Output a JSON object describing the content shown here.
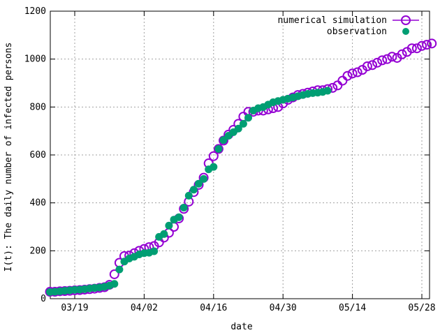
{
  "chart_data": {
    "type": "scatter",
    "xlabel": "date",
    "ylabel": "I(t): The daily number of infected persons",
    "xlim_days": [
      0,
      77
    ],
    "ylim": [
      0,
      1200
    ],
    "x_ticks": [
      {
        "day": 5,
        "label": "03/19"
      },
      {
        "day": 19,
        "label": "04/02"
      },
      {
        "day": 33,
        "label": "04/16"
      },
      {
        "day": 47,
        "label": "04/30"
      },
      {
        "day": 61,
        "label": "05/14"
      },
      {
        "day": 75,
        "label": "05/28"
      }
    ],
    "y_ticks": [
      0,
      200,
      400,
      600,
      800,
      1000,
      1200
    ],
    "grid": true,
    "legend_position": "top-right",
    "series": [
      {
        "name": "numerical simulation",
        "marker": "open-circle",
        "color": "#9400d3",
        "x_days": [
          0,
          1,
          2,
          3,
          4,
          5,
          6,
          7,
          8,
          9,
          10,
          11,
          12,
          13,
          14,
          15,
          16,
          17,
          18,
          19,
          20,
          21,
          22,
          23,
          24,
          25,
          26,
          27,
          28,
          29,
          30,
          31,
          32,
          33,
          34,
          35,
          36,
          37,
          38,
          39,
          40,
          41,
          42,
          43,
          44,
          45,
          46,
          47,
          48,
          49,
          50,
          51,
          52,
          53,
          54,
          55,
          56,
          57,
          58,
          59,
          60,
          61,
          62,
          63,
          64,
          65,
          66,
          67,
          68,
          69,
          70,
          71,
          72,
          73,
          74,
          75,
          76,
          77
        ],
        "values": [
          29,
          29,
          31,
          32,
          33,
          35,
          36,
          38,
          40,
          42,
          45,
          48,
          58,
          102,
          150,
          178,
          180,
          190,
          200,
          208,
          215,
          220,
          235,
          255,
          275,
          300,
          335,
          375,
          405,
          445,
          475,
          505,
          565,
          595,
          625,
          660,
          685,
          705,
          730,
          760,
          780,
          780,
          785,
          785,
          790,
          795,
          800,
          815,
          830,
          840,
          850,
          855,
          860,
          865,
          870,
          870,
          875,
          880,
          890,
          910,
          930,
          940,
          945,
          955,
          970,
          975,
          985,
          995,
          1000,
          1010,
          1005,
          1020,
          1030,
          1045,
          1045,
          1055,
          1060,
          1065
        ]
      },
      {
        "name": "observation",
        "marker": "filled-circle",
        "color": "#009e73",
        "x_days": [
          0,
          1,
          2,
          3,
          4,
          5,
          6,
          7,
          8,
          9,
          10,
          11,
          12,
          13,
          14,
          15,
          16,
          17,
          18,
          19,
          20,
          21,
          22,
          23,
          24,
          25,
          26,
          27,
          28,
          29,
          30,
          31,
          32,
          33,
          34,
          35,
          36,
          37,
          38,
          39,
          40,
          41,
          42,
          43,
          44,
          45,
          46,
          47,
          48,
          49,
          50,
          51,
          52,
          53,
          54,
          55,
          56
        ],
        "values": [
          28,
          29,
          31,
          33,
          35,
          37,
          38,
          40,
          43,
          45,
          47,
          50,
          55,
          62,
          122,
          155,
          168,
          175,
          185,
          190,
          192,
          198,
          258,
          270,
          305,
          330,
          340,
          380,
          430,
          455,
          480,
          500,
          540,
          550,
          625,
          662,
          680,
          695,
          710,
          730,
          755,
          785,
          795,
          800,
          810,
          820,
          825,
          830,
          835,
          840,
          845,
          850,
          855,
          858,
          860,
          863,
          868
        ]
      }
    ]
  }
}
